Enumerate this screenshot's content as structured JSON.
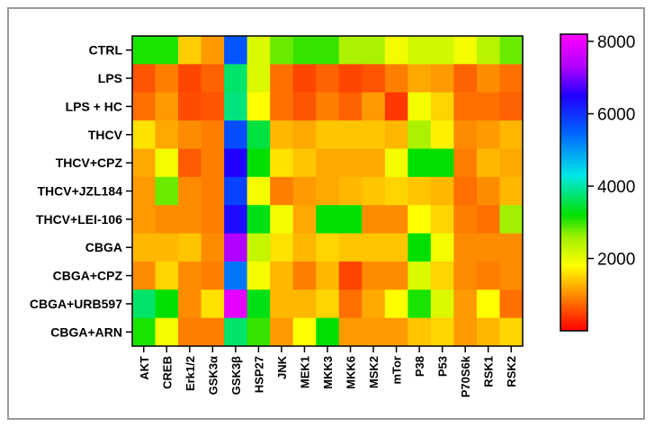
{
  "chart_data": {
    "type": "heatmap",
    "title": "",
    "xlabel": "",
    "ylabel": "",
    "rows": [
      "CTRL",
      "LPS",
      "LPS + HC",
      "THCV",
      "THCV+CPZ",
      "THCV+JZL184",
      "THCV+LEI-106",
      "CBGA",
      "CBGA+CPZ",
      "CBGA+URB597",
      "CBGA+ARN"
    ],
    "columns": [
      "AKT",
      "CREB",
      "Erk1/2",
      "GSK3α",
      "GSK3β",
      "HSP27",
      "JNK",
      "MEK1",
      "MKK3",
      "MKK6",
      "MSK2",
      "mTor",
      "P38",
      "P53",
      "P70S6k",
      "RSK1",
      "RSK2"
    ],
    "values": [
      [
        3100,
        3100,
        1450,
        1100,
        5600,
        2100,
        2800,
        3000,
        3000,
        2500,
        2500,
        1900,
        2200,
        2200,
        1900,
        2400,
        2800
      ],
      [
        600,
        900,
        500,
        700,
        3700,
        2100,
        800,
        500,
        700,
        500,
        600,
        900,
        1200,
        1100,
        700,
        1000,
        800
      ],
      [
        800,
        1100,
        550,
        600,
        3800,
        1800,
        800,
        600,
        900,
        700,
        1100,
        400,
        1900,
        1500,
        800,
        800,
        700
      ],
      [
        1600,
        1200,
        1000,
        900,
        5700,
        3500,
        1300,
        1200,
        1400,
        1400,
        1400,
        1300,
        2500,
        1700,
        1000,
        1100,
        1300
      ],
      [
        1200,
        1900,
        650,
        900,
        6500,
        3200,
        1600,
        1400,
        1200,
        1200,
        1200,
        1900,
        3200,
        3200,
        900,
        1300,
        1200
      ],
      [
        1100,
        2800,
        1000,
        900,
        5800,
        1900,
        900,
        1100,
        1200,
        1300,
        1400,
        1500,
        1400,
        1300,
        800,
        1000,
        1300
      ],
      [
        1100,
        1000,
        1000,
        900,
        6400,
        3300,
        1900,
        1200,
        3200,
        3200,
        1000,
        1000,
        1800,
        1500,
        900,
        800,
        2600
      ],
      [
        1300,
        1300,
        1400,
        1000,
        7300,
        2300,
        1600,
        1300,
        1500,
        1400,
        1400,
        1400,
        3200,
        1900,
        1000,
        1000,
        1000
      ],
      [
        1000,
        1500,
        1000,
        900,
        5300,
        1900,
        1300,
        900,
        1300,
        500,
        1000,
        1000,
        2100,
        1500,
        1000,
        900,
        1000
      ],
      [
        3700,
        3200,
        1000,
        1600,
        7900,
        3300,
        1300,
        1300,
        1500,
        800,
        1200,
        1800,
        3100,
        2100,
        1100,
        1800,
        800
      ],
      [
        3100,
        1900,
        900,
        900,
        3700,
        3000,
        1100,
        1800,
        3200,
        1100,
        1100,
        1100,
        1400,
        1500,
        1100,
        1300,
        1500
      ]
    ],
    "colorbar": {
      "min": 0,
      "max": 8200,
      "ticks": [
        2000,
        4000,
        6000,
        8000
      ],
      "tick_labels": [
        "2000",
        "4000",
        "6000",
        "8000"
      ],
      "stops": [
        {
          "value": 0,
          "color": "#ff0000"
        },
        {
          "value": 1000,
          "color": "#ff8c00"
        },
        {
          "value": 1800,
          "color": "#ffff00"
        },
        {
          "value": 2600,
          "color": "#a0f000"
        },
        {
          "value": 3200,
          "color": "#00e000"
        },
        {
          "value": 4300,
          "color": "#00e8e8"
        },
        {
          "value": 5500,
          "color": "#0060ff"
        },
        {
          "value": 6500,
          "color": "#2000ff"
        },
        {
          "value": 7300,
          "color": "#b000ff"
        },
        {
          "value": 8200,
          "color": "#ff00ff"
        }
      ]
    },
    "grid": false,
    "legend": "right"
  }
}
